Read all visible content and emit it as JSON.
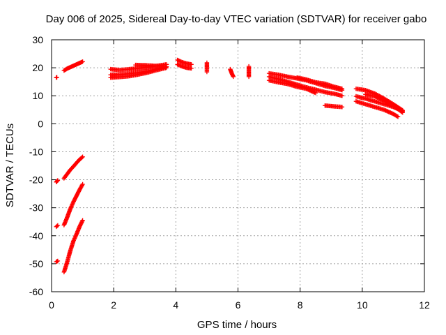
{
  "chart_data": {
    "type": "scatter",
    "title": "Day 006 of 2025, Sidereal Day-to-day VTEC variation (SDTVAR) for receiver gabo",
    "xlabel": "GPS time / hours",
    "ylabel": "SDTVAR / TECUs",
    "xlim": [
      0,
      12
    ],
    "ylim": [
      -60,
      30
    ],
    "xticks": [
      0,
      2,
      4,
      6,
      8,
      10,
      12
    ],
    "yticks": [
      -60,
      -50,
      -40,
      -30,
      -20,
      -10,
      0,
      10,
      20,
      30
    ],
    "grid": true,
    "marker": "plus",
    "color": "#ff0000",
    "segments": [
      {
        "x": [
          0.15,
          0.17
        ],
        "y": [
          16.5,
          16.6
        ]
      },
      {
        "x": [
          0.4,
          0.5,
          0.6,
          0.7,
          0.8,
          0.9,
          1.0
        ],
        "y": [
          19.0,
          19.7,
          20.2,
          20.7,
          21.2,
          21.7,
          22.2
        ]
      },
      {
        "x": [
          0.15,
          0.2
        ],
        "y": [
          -20.8,
          -20.2
        ]
      },
      {
        "x": [
          0.4,
          0.5,
          0.6,
          0.7,
          0.8,
          0.9,
          1.0
        ],
        "y": [
          -19.5,
          -18.0,
          -16.5,
          -15.3,
          -14.0,
          -12.8,
          -11.8
        ]
      },
      {
        "x": [
          0.15,
          0.2
        ],
        "y": [
          -36.8,
          -36.3
        ]
      },
      {
        "x": [
          0.4,
          0.5,
          0.6,
          0.7,
          0.8,
          0.9,
          1.0
        ],
        "y": [
          -36.2,
          -33.5,
          -30.5,
          -28.0,
          -25.8,
          -23.6,
          -21.6
        ]
      },
      {
        "x": [
          0.15,
          0.2
        ],
        "y": [
          -49.3,
          -49.0
        ]
      },
      {
        "x": [
          0.4,
          0.5,
          0.6,
          0.7,
          0.8,
          0.9,
          1.0
        ],
        "y": [
          -53.0,
          -49.5,
          -45.5,
          -42.0,
          -39.5,
          -36.8,
          -34.5
        ]
      },
      {
        "x": [
          1.9,
          2.2,
          2.5,
          2.8,
          3.1,
          3.4,
          3.7
        ],
        "y": [
          19.5,
          19.2,
          19.5,
          19.8,
          20.2,
          20.7,
          21.2
        ]
      },
      {
        "x": [
          1.9,
          2.2,
          2.5,
          2.8,
          3.1,
          3.4,
          3.7
        ],
        "y": [
          17.5,
          17.6,
          17.9,
          18.3,
          18.8,
          19.6,
          20.4
        ]
      },
      {
        "x": [
          1.9,
          2.2,
          2.5,
          2.8,
          3.1,
          3.4,
          3.7
        ],
        "y": [
          16.5,
          16.7,
          17.0,
          17.6,
          18.3,
          19.2,
          20.0
        ]
      },
      {
        "x": [
          2.7,
          3.0,
          3.3,
          3.6
        ],
        "y": [
          21.0,
          20.9,
          20.7,
          20.5
        ]
      },
      {
        "x": [
          4.05,
          4.2,
          4.35,
          4.5
        ],
        "y": [
          22.8,
          22.0,
          21.5,
          21.2
        ]
      },
      {
        "x": [
          4.05,
          4.2,
          4.35,
          4.5
        ],
        "y": [
          21.2,
          20.5,
          20.0,
          19.8
        ]
      },
      {
        "x": [
          5.0,
          5.0,
          5.0
        ],
        "y": [
          21.8,
          20.0,
          18.5
        ]
      },
      {
        "x": [
          5.75,
          5.8,
          5.85
        ],
        "y": [
          19.5,
          18.0,
          16.8
        ]
      },
      {
        "x": [
          6.35,
          6.35,
          6.35
        ],
        "y": [
          20.5,
          18.8,
          16.8
        ]
      },
      {
        "x": [
          7.0,
          7.3,
          7.6,
          7.9,
          8.2,
          8.5,
          8.8,
          9.1,
          9.35
        ],
        "y": [
          18.0,
          17.5,
          16.8,
          16.2,
          15.5,
          14.5,
          13.5,
          12.8,
          12.0
        ]
      },
      {
        "x": [
          7.0,
          7.3,
          7.6,
          7.9,
          8.2,
          8.5,
          8.8,
          9.1,
          9.35
        ],
        "y": [
          16.8,
          16.0,
          15.0,
          14.0,
          13.0,
          12.2,
          11.3,
          10.7,
          10.0
        ]
      },
      {
        "x": [
          7.0,
          7.3,
          7.6,
          7.9,
          8.2,
          8.5
        ],
        "y": [
          15.5,
          14.8,
          14.2,
          13.2,
          12.5,
          11.0
        ]
      },
      {
        "x": [
          7.9,
          8.2,
          8.5,
          8.8,
          9.1,
          9.35
        ],
        "y": [
          16.5,
          15.8,
          14.8,
          14.3,
          13.2,
          12.5
        ]
      },
      {
        "x": [
          8.8,
          9.1,
          9.35
        ],
        "y": [
          6.5,
          6.2,
          6.0
        ]
      },
      {
        "x": [
          9.8,
          10.1,
          10.4,
          10.7,
          11.0,
          11.3
        ],
        "y": [
          12.5,
          12.0,
          10.8,
          9.0,
          7.0,
          4.8
        ]
      },
      {
        "x": [
          9.8,
          10.1,
          10.4,
          10.7,
          11.0,
          11.3
        ],
        "y": [
          9.8,
          9.0,
          8.0,
          7.0,
          6.0,
          4.5
        ]
      },
      {
        "x": [
          9.8,
          10.1,
          10.4,
          10.7,
          11.0,
          11.15
        ],
        "y": [
          8.0,
          7.0,
          6.0,
          5.0,
          3.5,
          2.5
        ]
      },
      {
        "x": [
          10.1,
          10.4,
          10.7,
          11.0,
          11.3
        ],
        "y": [
          10.5,
          9.8,
          8.2,
          6.5,
          4.0
        ]
      }
    ]
  }
}
